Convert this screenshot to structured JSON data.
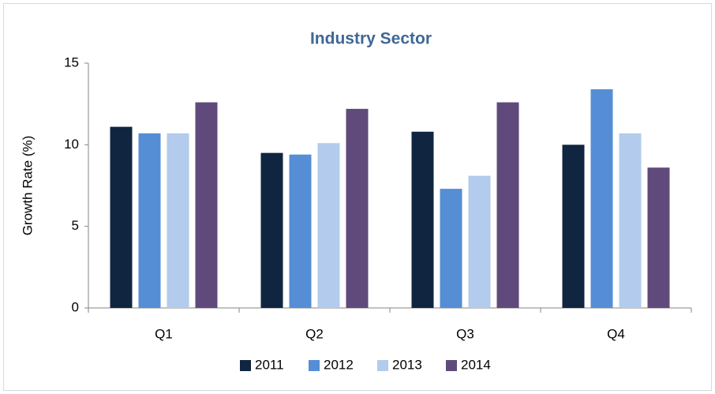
{
  "chart_data": {
    "type": "bar",
    "title": "Industry Sector",
    "y_label": "Growth Rate (%)",
    "categories": [
      "Q1",
      "Q2",
      "Q3",
      "Q4"
    ],
    "series": [
      {
        "name": "2011",
        "color": "#10253f",
        "values": [
          11.1,
          9.5,
          10.8,
          10.0
        ]
      },
      {
        "name": "2012",
        "color": "#558ed5",
        "values": [
          10.7,
          9.4,
          7.3,
          13.4
        ]
      },
      {
        "name": "2013",
        "color": "#b3cbec",
        "values": [
          10.7,
          10.1,
          8.1,
          10.7
        ]
      },
      {
        "name": "2014",
        "color": "#604a7b",
        "values": [
          12.6,
          12.2,
          12.6,
          8.6
        ]
      }
    ],
    "ylim": [
      0,
      15
    ],
    "yticks": [
      0,
      5,
      10,
      15
    ],
    "grid": false,
    "legend": "bottom"
  }
}
